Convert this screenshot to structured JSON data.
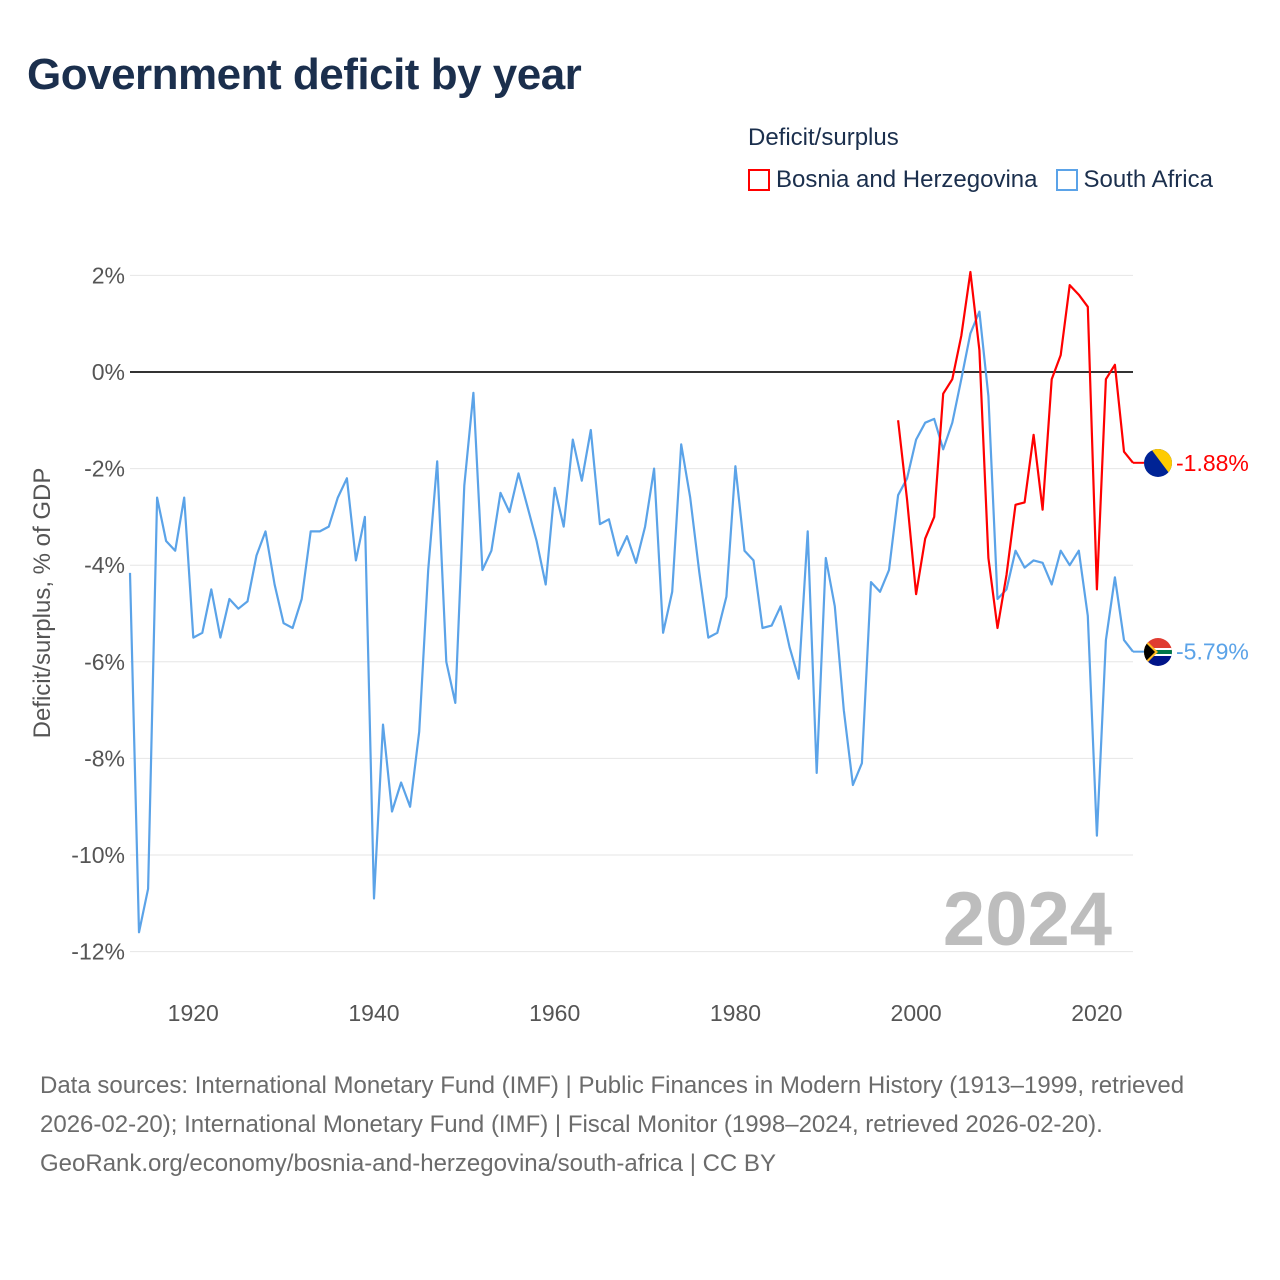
{
  "title": "Government deficit by year",
  "legend": {
    "title": "Deficit/surplus",
    "items": [
      {
        "name": "Bosnia and Herzegovina",
        "color": "#ff0000"
      },
      {
        "name": "South Africa",
        "color": "#5ba3e8"
      }
    ]
  },
  "chart_data": {
    "type": "line",
    "title": "Government deficit by year",
    "ylabel": "Deficit/surplus, % of GDP",
    "xlabel": "",
    "xlim": [
      1913,
      2024
    ],
    "ylim": [
      -12.5,
      2.5
    ],
    "yticks": [
      2,
      0,
      -2,
      -4,
      -6,
      -8,
      -10,
      -12
    ],
    "ytick_labels": [
      "2%",
      "0%",
      "-2%",
      "-4%",
      "-6%",
      "-8%",
      "-10%",
      "-12%"
    ],
    "xticks": [
      1920,
      1940,
      1960,
      1980,
      2000,
      2020
    ],
    "xtick_labels": [
      "1920",
      "1940",
      "1960",
      "1980",
      "2000",
      "2020"
    ],
    "grid": true,
    "watermark_year": "2024",
    "series": [
      {
        "name": "Bosnia and Herzegovina",
        "color": "#ff0000",
        "start_year": 1998,
        "end_label": "-1.88%",
        "values": [
          -1.0,
          -2.65,
          -4.6,
          -3.45,
          -3.0,
          -0.45,
          -0.15,
          0.75,
          2.07,
          0.45,
          -3.85,
          -5.3,
          -4.2,
          -2.75,
          -2.7,
          -1.3,
          -2.85,
          -0.15,
          0.35,
          1.8,
          1.6,
          1.35,
          -4.5,
          -0.15,
          0.15,
          -1.65,
          -1.88
        ]
      },
      {
        "name": "South Africa",
        "color": "#5ba3e8",
        "start_year": 1913,
        "end_label": "-5.79%",
        "values": [
          -4.16,
          -11.6,
          -10.7,
          -2.6,
          -3.5,
          -3.7,
          -2.6,
          -5.5,
          -5.4,
          -4.5,
          -5.5,
          -4.7,
          -4.9,
          -4.75,
          -3.8,
          -3.3,
          -4.4,
          -5.2,
          -5.3,
          -4.7,
          -3.3,
          -3.3,
          -3.2,
          -2.6,
          -2.2,
          -3.9,
          -3.0,
          -10.9,
          -7.3,
          -9.1,
          -8.5,
          -9.0,
          -7.45,
          -4.1,
          -1.85,
          -6.0,
          -6.85,
          -2.35,
          -0.43,
          -4.1,
          -3.7,
          -2.5,
          -2.9,
          -2.1,
          -2.8,
          -3.5,
          -4.4,
          -2.4,
          -3.2,
          -1.4,
          -2.25,
          -1.2,
          -3.15,
          -3.05,
          -3.8,
          -3.4,
          -3.95,
          -3.2,
          -2.0,
          -5.4,
          -4.55,
          -1.5,
          -2.6,
          -4.15,
          -5.5,
          -5.4,
          -4.65,
          -1.95,
          -3.7,
          -3.9,
          -5.3,
          -5.25,
          -4.85,
          -5.7,
          -6.35,
          -3.3,
          -8.3,
          -3.85,
          -4.85,
          -7.0,
          -8.55,
          -8.1,
          -4.35,
          -4.55,
          -4.1,
          -2.55,
          -2.2,
          -1.4,
          -1.05,
          -0.97,
          -1.6,
          -1.05,
          -0.15,
          0.8,
          1.25,
          -0.5,
          -4.7,
          -4.5,
          -3.7,
          -4.05,
          -3.9,
          -3.95,
          -4.4,
          -3.7,
          -4.0,
          -3.7,
          -5.05,
          -9.6,
          -5.55,
          -4.25,
          -5.55,
          -5.79
        ]
      }
    ]
  },
  "footer": {
    "sources": "Data sources: International Monetary Fund (IMF) | Public Finances in Modern History (1913–1999, retrieved 2026-02-20); International Monetary Fund (IMF) | Fiscal Monitor (1998–2024, retrieved 2026-02-20).",
    "attribution": "GeoRank.org/economy/bosnia-and-herzegovina/south-africa | CC BY"
  }
}
